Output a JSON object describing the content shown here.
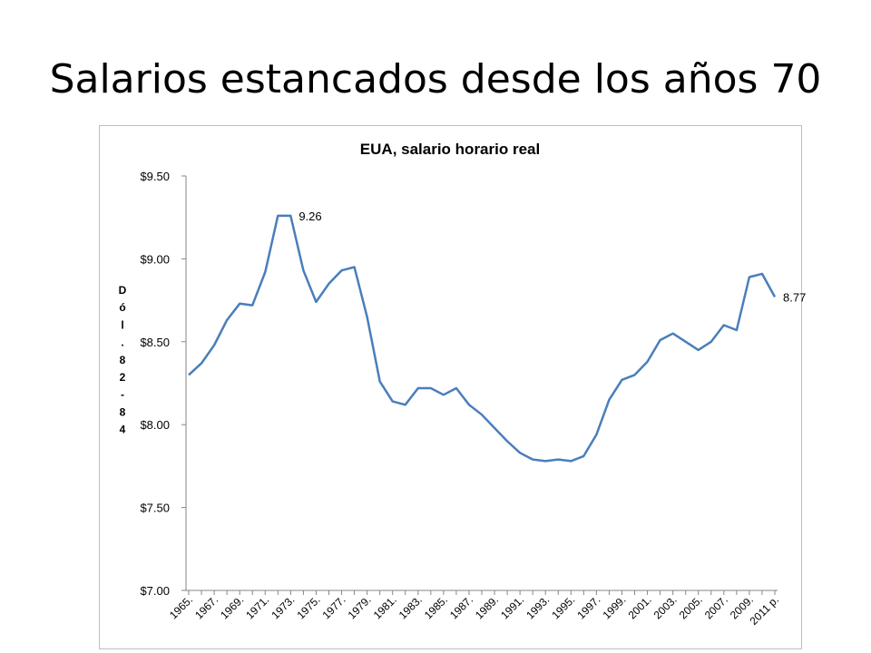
{
  "slide": {
    "title": "Salarios estancados desde los años 70"
  },
  "chart_data": {
    "type": "line",
    "title": "EUA, salario horario real",
    "ylabel": "Dól. 82-84",
    "xlabel": "",
    "ylim": [
      7.0,
      9.5
    ],
    "yticks": [
      9.5,
      9.0,
      8.5,
      8.0,
      7.5,
      7.0
    ],
    "ytick_labels": [
      "$9.50",
      "$9.00",
      "$8.50",
      "$8.00",
      "$7.50",
      "$7.00"
    ],
    "grid": false,
    "legend": "none",
    "color": "#4a7ebb",
    "x": [
      "1965",
      "1966",
      "1967",
      "1968",
      "1969",
      "1970",
      "1971",
      "1972",
      "1973",
      "1974",
      "1975",
      "1976",
      "1977",
      "1978",
      "1979",
      "1980",
      "1981",
      "1982",
      "1983",
      "1984",
      "1985",
      "1986",
      "1987",
      "1988",
      "1989",
      "1990",
      "1991",
      "1992",
      "1993",
      "1994",
      "1995",
      "1996",
      "1997",
      "1998",
      "1999",
      "2000",
      "2001",
      "2002",
      "2003",
      "2004",
      "2005",
      "2006",
      "2007",
      "2008",
      "2009",
      "2010",
      "2011 p"
    ],
    "xtick_labels": [
      "1965.",
      "1967.",
      "1969.",
      "1971.",
      "1973.",
      "1975.",
      "1977.",
      "1979.",
      "1981.",
      "1983.",
      "1985.",
      "1987.",
      "1989.",
      "1991.",
      "1993.",
      "1995.",
      "1997.",
      "1999.",
      "2001.",
      "2003.",
      "2005.",
      "2007.",
      "2009.",
      "2011 p."
    ],
    "values": [
      8.3,
      8.37,
      8.48,
      8.63,
      8.73,
      8.72,
      8.92,
      9.26,
      9.26,
      8.93,
      8.74,
      8.85,
      8.93,
      8.95,
      8.65,
      8.26,
      8.14,
      8.12,
      8.22,
      8.22,
      8.18,
      8.22,
      8.12,
      8.06,
      7.98,
      7.9,
      7.83,
      7.79,
      7.78,
      7.79,
      7.78,
      7.81,
      7.94,
      8.15,
      8.27,
      8.3,
      8.38,
      8.51,
      8.55,
      8.5,
      8.45,
      8.5,
      8.6,
      8.57,
      8.89,
      8.91,
      8.77
    ],
    "annotations": [
      {
        "index": 8,
        "text": "9.26"
      },
      {
        "index": 46,
        "text": "8.77"
      }
    ]
  }
}
